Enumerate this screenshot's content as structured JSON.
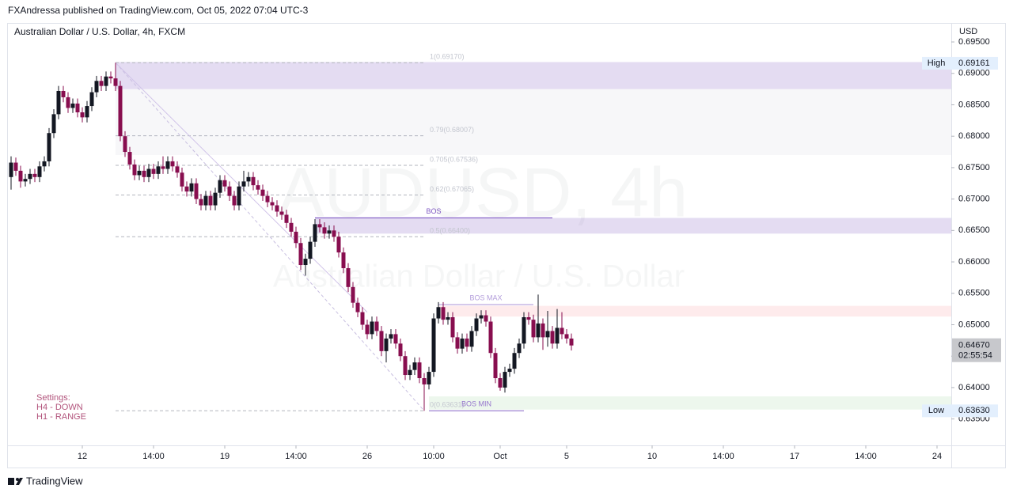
{
  "header": {
    "publisher": "FXAndressa published on TradingView.com, Oct 05, 2022 07:04 UTC-3",
    "brand": "TradingView"
  },
  "chart_data": {
    "type": "candlestick",
    "title": "Australian Dollar / U.S. Dollar, 4h, FXCM",
    "currency": "USD",
    "watermark": "AUDUSD, 4h",
    "watermark_subtitle": "Australian Dollar / U.S. Dollar",
    "notes": [
      "Settings:",
      "H4 - DOWN",
      "H1 - RANGE"
    ],
    "up_color": "#131722",
    "down_color": "#880e4f",
    "ylim": [
      0.6308,
      0.6979
    ],
    "yticks": [
      {
        "value": 0.635,
        "label": "0.63500"
      },
      {
        "value": 0.64,
        "label": "0.64000"
      },
      {
        "value": 0.645,
        "label": "0.64500"
      },
      {
        "value": 0.65,
        "label": "0.65000"
      },
      {
        "value": 0.655,
        "label": "0.65500"
      },
      {
        "value": 0.66,
        "label": "0.66000"
      },
      {
        "value": 0.665,
        "label": "0.66500"
      },
      {
        "value": 0.67,
        "label": "0.67000"
      },
      {
        "value": 0.675,
        "label": "0.67500"
      },
      {
        "value": 0.68,
        "label": "0.68000"
      },
      {
        "value": 0.685,
        "label": "0.68500"
      },
      {
        "value": 0.69,
        "label": "0.69000"
      },
      {
        "value": 0.695,
        "label": "0.69500"
      }
    ],
    "xlim": [
      -0.333,
      198
    ],
    "xticks": [
      {
        "value": 15,
        "label": "12"
      },
      {
        "value": 30,
        "label": "14:00"
      },
      {
        "value": 45,
        "label": "19"
      },
      {
        "value": 60,
        "label": "14:00"
      },
      {
        "value": 75,
        "label": "26"
      },
      {
        "value": 89,
        "label": "10:00"
      },
      {
        "value": 103,
        "label": "Oct"
      },
      {
        "value": 117,
        "label": "5"
      },
      {
        "value": 135,
        "label": "10"
      },
      {
        "value": 150,
        "label": "14:00"
      },
      {
        "value": 165,
        "label": "17"
      },
      {
        "value": 180,
        "label": "14:00"
      },
      {
        "value": 195,
        "label": "24"
      }
    ],
    "open": [
      0.6735,
      0.6758,
      0.6745,
      0.6728,
      0.6732,
      0.674,
      0.6735,
      0.6752,
      0.676,
      0.6805,
      0.6835,
      0.6872,
      0.6862,
      0.6845,
      0.6852,
      0.6838,
      0.683,
      0.6848,
      0.687,
      0.6888,
      0.688,
      0.6895,
      0.6892,
      0.688,
      0.68,
      0.6775,
      0.6755,
      0.6738,
      0.6745,
      0.6735,
      0.6748,
      0.674,
      0.6752,
      0.6748,
      0.676,
      0.6752,
      0.6742,
      0.672,
      0.6712,
      0.6725,
      0.67,
      0.669,
      0.6705,
      0.669,
      0.671,
      0.673,
      0.672,
      0.6705,
      0.669,
      0.672,
      0.6728,
      0.6735,
      0.6722,
      0.6715,
      0.6705,
      0.6695,
      0.669,
      0.668,
      0.6675,
      0.6662,
      0.6648,
      0.663,
      0.6595,
      0.6605,
      0.6632,
      0.666,
      0.6655,
      0.6645,
      0.665,
      0.664,
      0.6615,
      0.659,
      0.656,
      0.6535,
      0.652,
      0.65,
      0.6485,
      0.6505,
      0.649,
      0.6458,
      0.6478,
      0.6485,
      0.647,
      0.645,
      0.642,
      0.6428,
      0.644,
      0.6415,
      0.6405,
      0.6425,
      0.651,
      0.6528,
      0.6508,
      0.6512,
      0.648,
      0.6462,
      0.6478,
      0.6465,
      0.649,
      0.651,
      0.6515,
      0.6505,
      0.6455,
      0.6415,
      0.64,
      0.6425,
      0.643,
      0.6455,
      0.647,
      0.6512,
      0.6508,
      0.648,
      0.6502,
      0.648,
      0.649,
      0.647,
      0.6495,
      0.6485,
      0.6478
    ],
    "high": [
      0.6768,
      0.6766,
      0.6753,
      0.674,
      0.6748,
      0.6748,
      0.676,
      0.6768,
      0.6813,
      0.6843,
      0.688,
      0.688,
      0.687,
      0.686,
      0.686,
      0.6846,
      0.6856,
      0.6878,
      0.6896,
      0.6896,
      0.6903,
      0.6903,
      0.6917,
      0.6888,
      0.6808,
      0.6783,
      0.6763,
      0.6753,
      0.6753,
      0.6756,
      0.6756,
      0.676,
      0.6768,
      0.6768,
      0.6768,
      0.676,
      0.675,
      0.6728,
      0.6733,
      0.6733,
      0.6708,
      0.6713,
      0.6713,
      0.6718,
      0.6738,
      0.6738,
      0.6728,
      0.6713,
      0.6728,
      0.6745,
      0.6743,
      0.6743,
      0.673,
      0.6723,
      0.6713,
      0.6703,
      0.6698,
      0.6688,
      0.6683,
      0.667,
      0.6656,
      0.6638,
      0.6613,
      0.664,
      0.6668,
      0.6668,
      0.6663,
      0.6658,
      0.6658,
      0.6648,
      0.6623,
      0.6598,
      0.6568,
      0.6543,
      0.6528,
      0.6508,
      0.6513,
      0.6513,
      0.6498,
      0.6486,
      0.6493,
      0.6493,
      0.6478,
      0.6458,
      0.6436,
      0.6448,
      0.6448,
      0.6423,
      0.6433,
      0.6518,
      0.6536,
      0.6536,
      0.652,
      0.652,
      0.6488,
      0.6486,
      0.6486,
      0.6498,
      0.6518,
      0.6523,
      0.6523,
      0.6513,
      0.6463,
      0.6423,
      0.6433,
      0.6438,
      0.6463,
      0.6478,
      0.652,
      0.652,
      0.6516,
      0.6548,
      0.651,
      0.6522,
      0.6498,
      0.6525,
      0.652,
      0.6493,
      0.6486
    ],
    "low": [
      0.6715,
      0.6737,
      0.6718,
      0.672,
      0.6724,
      0.6727,
      0.6727,
      0.6744,
      0.6752,
      0.6797,
      0.6827,
      0.6854,
      0.6837,
      0.6837,
      0.683,
      0.6822,
      0.6822,
      0.684,
      0.6862,
      0.6872,
      0.6872,
      0.6884,
      0.6872,
      0.6792,
      0.6767,
      0.6747,
      0.673,
      0.673,
      0.6727,
      0.6727,
      0.6732,
      0.6732,
      0.674,
      0.674,
      0.6744,
      0.6734,
      0.6712,
      0.6704,
      0.6704,
      0.6692,
      0.6682,
      0.6682,
      0.6682,
      0.6682,
      0.6702,
      0.6712,
      0.6697,
      0.6682,
      0.6682,
      0.6712,
      0.672,
      0.6714,
      0.6707,
      0.6697,
      0.6687,
      0.6682,
      0.6672,
      0.6667,
      0.6654,
      0.664,
      0.6622,
      0.6587,
      0.6578,
      0.6597,
      0.6624,
      0.6647,
      0.6637,
      0.6637,
      0.6632,
      0.6607,
      0.6582,
      0.6552,
      0.6527,
      0.6512,
      0.6492,
      0.6477,
      0.6477,
      0.6482,
      0.645,
      0.644,
      0.647,
      0.6462,
      0.6442,
      0.6412,
      0.6412,
      0.642,
      0.6407,
      0.6363,
      0.6397,
      0.6417,
      0.6502,
      0.65,
      0.65,
      0.6472,
      0.6454,
      0.6454,
      0.6457,
      0.6457,
      0.6482,
      0.6502,
      0.6497,
      0.6447,
      0.6407,
      0.6395,
      0.6392,
      0.6417,
      0.6422,
      0.6447,
      0.6462,
      0.65,
      0.6472,
      0.6472,
      0.646,
      0.6465,
      0.6462,
      0.6462,
      0.6477,
      0.647,
      0.6459
    ],
    "close": [
      0.6758,
      0.6745,
      0.6728,
      0.6732,
      0.674,
      0.6735,
      0.6752,
      0.676,
      0.6805,
      0.6835,
      0.6872,
      0.6862,
      0.6845,
      0.6852,
      0.6838,
      0.683,
      0.6848,
      0.687,
      0.6888,
      0.688,
      0.6895,
      0.6892,
      0.688,
      0.68,
      0.6775,
      0.6755,
      0.6738,
      0.6745,
      0.6735,
      0.6748,
      0.674,
      0.6752,
      0.6748,
      0.676,
      0.6752,
      0.6742,
      0.672,
      0.6712,
      0.6725,
      0.67,
      0.669,
      0.6705,
      0.669,
      0.671,
      0.673,
      0.672,
      0.6705,
      0.669,
      0.672,
      0.6728,
      0.6735,
      0.6722,
      0.6715,
      0.6705,
      0.6695,
      0.669,
      0.668,
      0.6675,
      0.6662,
      0.6648,
      0.663,
      0.6595,
      0.6605,
      0.6632,
      0.666,
      0.6655,
      0.6645,
      0.665,
      0.664,
      0.6615,
      0.659,
      0.656,
      0.6535,
      0.652,
      0.65,
      0.6485,
      0.6505,
      0.649,
      0.6458,
      0.6478,
      0.6485,
      0.647,
      0.645,
      0.642,
      0.6428,
      0.644,
      0.6415,
      0.6405,
      0.6425,
      0.651,
      0.6528,
      0.6508,
      0.6512,
      0.648,
      0.6462,
      0.6478,
      0.6465,
      0.649,
      0.651,
      0.6515,
      0.6505,
      0.6455,
      0.6415,
      0.64,
      0.6425,
      0.643,
      0.6455,
      0.647,
      0.6512,
      0.6508,
      0.648,
      0.6502,
      0.648,
      0.649,
      0.647,
      0.6495,
      0.6485,
      0.6478,
      0.6467
    ],
    "zones": [
      {
        "top": 0.6918,
        "bottom": 0.6875,
        "start": 22,
        "color": "rgba(149,117,205,0.25)"
      },
      {
        "top": 0.6875,
        "bottom": 0.677,
        "start": 22,
        "color": "rgba(180,180,195,0.1)"
      },
      {
        "top": 0.667,
        "bottom": 0.6645,
        "start": 64,
        "color": "rgba(149,117,205,0.25)"
      },
      {
        "top": 0.653,
        "bottom": 0.6513,
        "start": 90,
        "color": "rgba(242,54,69,0.1)"
      },
      {
        "top": 0.6386,
        "bottom": 0.6365,
        "start": 88,
        "color": "rgba(76,175,80,0.1)"
      }
    ],
    "structure": [
      {
        "label": "BOS",
        "price": 0.667,
        "start": 64,
        "end": 114,
        "color": "#7e57c2"
      },
      {
        "label": "BOS MAX",
        "price": 0.6532,
        "start": 90,
        "end": 110,
        "color": "#b39ddb"
      },
      {
        "label": "BOS MIN",
        "price": 0.6363,
        "start": 88,
        "end": 108,
        "color": "#9575cd"
      }
    ],
    "fib_start": 22,
    "fib_end": 87,
    "fib_levels": [
      {
        "value": 0.6917,
        "label": "1(0.69170)"
      },
      {
        "value": 0.68007,
        "label": "0.79(0.68007)"
      },
      {
        "value": 0.67536,
        "label": "0.705(0.67536)"
      },
      {
        "value": 0.67065,
        "label": "0.62(0.67065)"
      },
      {
        "value": 0.664,
        "label": "0.5(0.66400)"
      },
      {
        "value": 0.63631,
        "label": "0(0.63631)"
      }
    ],
    "price_labels": [
      {
        "name": "High",
        "value": 0.69161,
        "label": "0.69161",
        "bg": "#e3effd"
      },
      {
        "name": "Low",
        "value": 0.6363,
        "label": "0.63630",
        "bg": "#e3effd"
      }
    ],
    "last_price": {
      "value": 0.6467,
      "label": "0.64670",
      "countdown": "02:55:54"
    }
  }
}
